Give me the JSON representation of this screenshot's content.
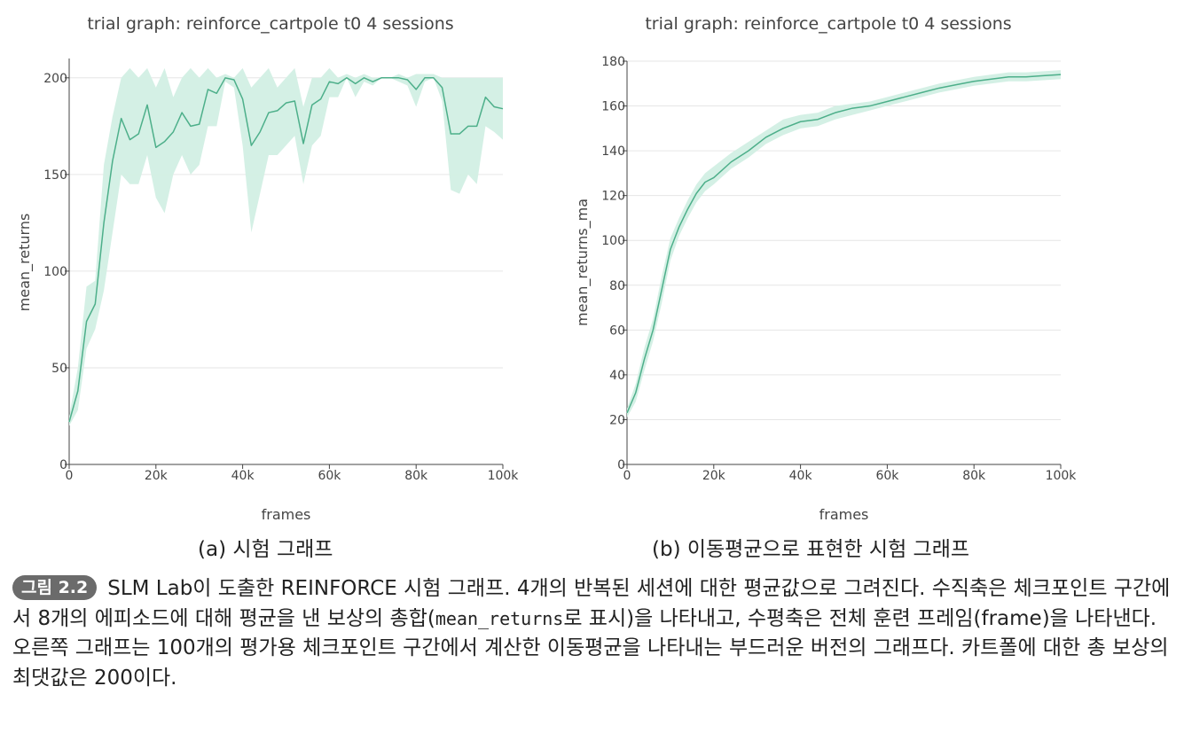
{
  "chart_data": [
    {
      "type": "line",
      "title": "trial graph: reinforce_cartpole t0 4 sessions",
      "xlabel": "frames",
      "ylabel": "mean_returns",
      "xlim": [
        0,
        100000
      ],
      "ylim": [
        0,
        210
      ],
      "xticks": [
        0,
        20000,
        40000,
        60000,
        80000,
        100000
      ],
      "xtick_labels": [
        "0",
        "20k",
        "40k",
        "60k",
        "80k",
        "100k"
      ],
      "yticks": [
        0,
        50,
        100,
        150,
        200
      ],
      "ytick_labels": [
        "0",
        "50",
        "100",
        "150",
        "200"
      ],
      "grid": true,
      "color": "#4daf8a",
      "band_color": "#d2efe4",
      "x": [
        0,
        2000,
        4000,
        6000,
        8000,
        10000,
        12000,
        14000,
        16000,
        18000,
        20000,
        22000,
        24000,
        26000,
        28000,
        30000,
        32000,
        34000,
        36000,
        38000,
        40000,
        42000,
        44000,
        46000,
        48000,
        50000,
        52000,
        54000,
        56000,
        58000,
        60000,
        62000,
        64000,
        66000,
        68000,
        70000,
        72000,
        74000,
        76000,
        78000,
        80000,
        82000,
        84000,
        86000,
        88000,
        90000,
        92000,
        94000,
        96000,
        98000,
        100000
      ],
      "series": [
        {
          "values": [
            22,
            38,
            74,
            83,
            125,
            157,
            179,
            168,
            171,
            186,
            164,
            167,
            172,
            182,
            175,
            176,
            194,
            192,
            200,
            199,
            189,
            165,
            172,
            182,
            183,
            187,
            188,
            166,
            186,
            189,
            198,
            197,
            200,
            197,
            200,
            198,
            200,
            200,
            200,
            199,
            194,
            200,
            200,
            195,
            171,
            171,
            175,
            175,
            190,
            185,
            184
          ],
          "lower": [
            20,
            28,
            60,
            70,
            90,
            120,
            150,
            145,
            145,
            160,
            138,
            130,
            150,
            160,
            150,
            155,
            175,
            175,
            198,
            195,
            165,
            120,
            140,
            160,
            160,
            165,
            170,
            145,
            165,
            170,
            190,
            190,
            200,
            190,
            198,
            196,
            200,
            200,
            198,
            196,
            185,
            198,
            200,
            188,
            142,
            140,
            150,
            145,
            175,
            172,
            168
          ],
          "upper": [
            25,
            50,
            92,
            95,
            155,
            180,
            200,
            205,
            200,
            205,
            195,
            205,
            190,
            200,
            205,
            200,
            205,
            200,
            202,
            200,
            205,
            195,
            200,
            205,
            195,
            200,
            205,
            185,
            200,
            200,
            205,
            200,
            202,
            200,
            202,
            200,
            200,
            200,
            202,
            200,
            202,
            202,
            202,
            200,
            200,
            200,
            200,
            200,
            200,
            200,
            200
          ]
        }
      ]
    },
    {
      "type": "line",
      "title": "trial graph: reinforce_cartpole t0 4 sessions",
      "xlabel": "frames",
      "ylabel": "mean_returns_ma",
      "xlim": [
        0,
        100000
      ],
      "ylim": [
        0,
        180
      ],
      "xticks": [
        0,
        20000,
        40000,
        60000,
        80000,
        100000
      ],
      "xtick_labels": [
        "0",
        "20k",
        "40k",
        "60k",
        "80k",
        "100k"
      ],
      "yticks": [
        0,
        20,
        40,
        60,
        80,
        100,
        120,
        140,
        160,
        180
      ],
      "ytick_labels": [
        "0",
        "20",
        "40",
        "60",
        "80",
        "100",
        "120",
        "140",
        "160",
        "180"
      ],
      "grid": true,
      "color": "#4daf8a",
      "band_color": "#d2efe4",
      "x": [
        0,
        2000,
        4000,
        6000,
        8000,
        10000,
        12000,
        14000,
        16000,
        18000,
        20000,
        24000,
        28000,
        32000,
        36000,
        40000,
        44000,
        48000,
        52000,
        56000,
        60000,
        64000,
        68000,
        72000,
        76000,
        80000,
        84000,
        88000,
        92000,
        96000,
        100000
      ],
      "series": [
        {
          "values": [
            23,
            32,
            47,
            60,
            78,
            96,
            106,
            114,
            121,
            126,
            128,
            135,
            140,
            146,
            150,
            153,
            154,
            157,
            159,
            160,
            162,
            164,
            166,
            168,
            169.5,
            171,
            172,
            173,
            173,
            173.5,
            174
          ],
          "lower": [
            21,
            28,
            42,
            55,
            72,
            91,
            102,
            110,
            117,
            122,
            125,
            132,
            137,
            143,
            147,
            150,
            151,
            154,
            156,
            158,
            160,
            162,
            164,
            166,
            167.5,
            169,
            170,
            171,
            171,
            171.5,
            172
          ],
          "upper": [
            25,
            36,
            52,
            65,
            84,
            101,
            110,
            118,
            125,
            130,
            133,
            139,
            144,
            149,
            154,
            156,
            157,
            160,
            161,
            162,
            164,
            166,
            168,
            170,
            171.5,
            173,
            174,
            175,
            175,
            175.5,
            176
          ]
        }
      ]
    }
  ],
  "sub_captions": {
    "a": "(a) 시험 그래프",
    "b": "(b) 이동평균으로 표현한 시험 그래프"
  },
  "caption": {
    "label": "그림 2.2",
    "part1": "SLM Lab이 도출한 REINFORCE 시험 그래프. 4개의 반복된 세션에 대한 평균값으로 그려진다. 수직축은 체크포인트 구간에서 8개의 에피소드에 대해 평균을 낸 보상의 총합(",
    "mono": "mean_returns",
    "part2": "로 표시)을 나타내고, 수평축은 전체 훈련 프레임(frame)을 나타낸다. 오른쪽 그래프는 100개의 평가용 체크포인트 구간에서 계산한 이동평균을 나타내는 부드러운 버전의 그래프다. 카트폴에 대한 총 보상의 최댓값은 200이다."
  }
}
